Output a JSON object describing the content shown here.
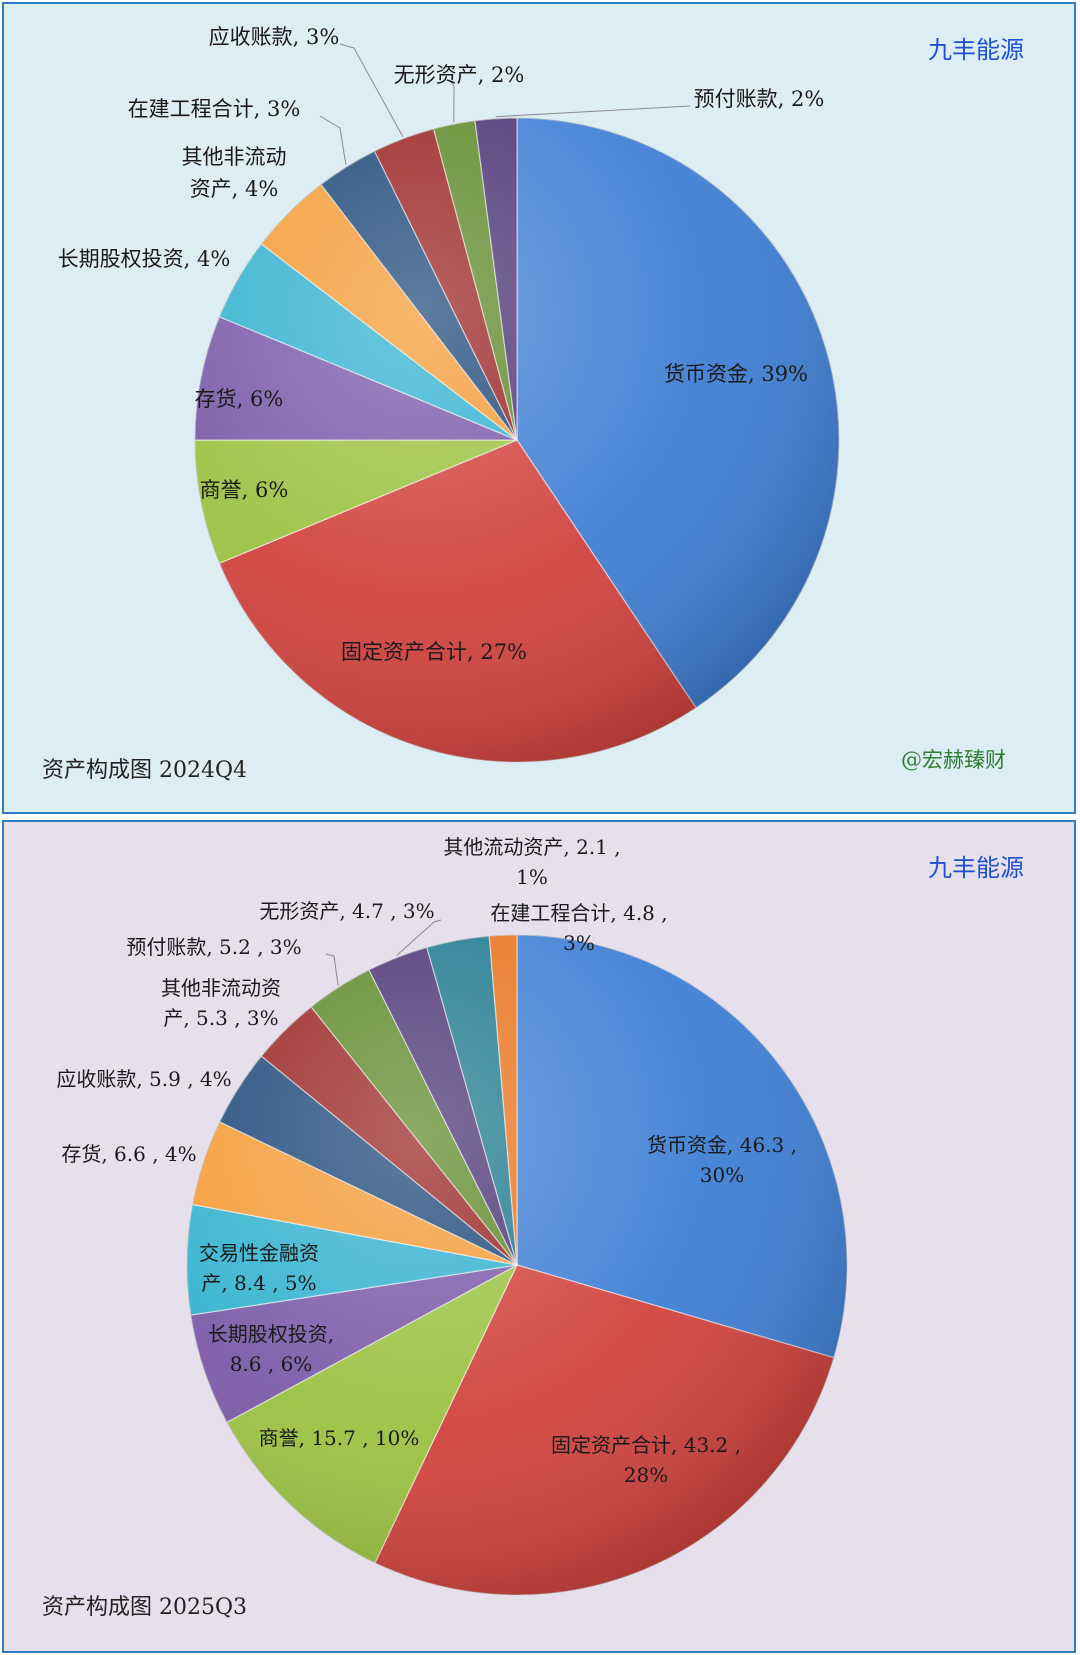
{
  "charts": [
    {
      "company": "九丰能源",
      "caption": "资产构成图 2024Q4",
      "watermark": "@宏赫臻财"
    },
    {
      "company": "九丰能源",
      "caption": "资产构成图 2025Q3"
    }
  ],
  "chart_data": [
    {
      "type": "pie",
      "title": "资产构成图 2024Q4",
      "slices": [
        {
          "label": "货币资金",
          "percent": 39,
          "color": "#3f7fd4",
          "text": [
            "货币资金, 39%"
          ]
        },
        {
          "label": "固定资产合计",
          "percent": 27,
          "color": "#d1433e",
          "text": [
            "固定资产合计, 27%"
          ]
        },
        {
          "label": "商誉",
          "percent": 6,
          "color": "#9bc242",
          "text": [
            "商誉, 6%"
          ]
        },
        {
          "label": "存货",
          "percent": 6,
          "color": "#7b5aa8",
          "text": [
            "存货, 6%"
          ]
        },
        {
          "label": "长期股权投资",
          "percent": 4,
          "color": "#33b2cf",
          "text": [
            "长期股权投资, 4%"
          ]
        },
        {
          "label": "其他非流动资产",
          "percent": 4,
          "color": "#f59b35",
          "text": [
            "其他非流动",
            "资产, 4%"
          ]
        },
        {
          "label": "在建工程合计",
          "percent": 3,
          "color": "#1f4a7a",
          "text": [
            "在建工程合计, 3%"
          ]
        },
        {
          "label": "应收账款",
          "percent": 3,
          "color": "#9a2525",
          "text": [
            "应收账款, 3%"
          ]
        },
        {
          "label": "无形资产",
          "percent": 2,
          "color": "#5e8a2a",
          "text": [
            "无形资产, 2%"
          ]
        },
        {
          "label": "预付账款",
          "percent": 2,
          "color": "#4d3575",
          "text": [
            "预付账款, 2%"
          ]
        }
      ]
    },
    {
      "type": "pie",
      "title": "资产构成图 2025Q3",
      "slices": [
        {
          "label": "货币资金",
          "value": 46.3,
          "percent": 30,
          "color": "#3f7fd4",
          "text": [
            "货币资金, 46.3 ,",
            "30%"
          ]
        },
        {
          "label": "固定资产合计",
          "value": 43.2,
          "percent": 28,
          "color": "#d1433e",
          "text": [
            "固定资产合计, 43.2 ,",
            "28%"
          ]
        },
        {
          "label": "商誉",
          "value": 15.7,
          "percent": 10,
          "color": "#9bc242",
          "text": [
            "商誉, 15.7 , 10%"
          ]
        },
        {
          "label": "长期股权投资",
          "value": 8.6,
          "percent": 6,
          "color": "#7b5aa8",
          "text": [
            "长期股权投资,",
            "8.6 , 6%"
          ]
        },
        {
          "label": "交易性金融资产",
          "value": 8.4,
          "percent": 5,
          "color": "#33b2cf",
          "text": [
            "交易性金融资",
            "产, 8.4 , 5%"
          ]
        },
        {
          "label": "存货",
          "value": 6.6,
          "percent": 4,
          "color": "#f59b35",
          "text": [
            "存货, 6.6 , 4%"
          ]
        },
        {
          "label": "应收账款",
          "value": 5.9,
          "percent": 4,
          "color": "#1f4a7a",
          "text": [
            "应收账款, 5.9 , 4%"
          ]
        },
        {
          "label": "其他非流动资产",
          "value": 5.3,
          "percent": 3,
          "color": "#9a2525",
          "text": [
            "其他非流动资",
            "产, 5.3 , 3%"
          ]
        },
        {
          "label": "预付账款",
          "value": 5.2,
          "percent": 3,
          "color": "#5e8a2a",
          "text": [
            "预付账款, 5.2 , 3%"
          ]
        },
        {
          "label": "无形资产",
          "value": 4.7,
          "percent": 3,
          "color": "#4d3575",
          "text": [
            "无形资产, 4.7 , 3%"
          ]
        },
        {
          "label": "在建工程合计",
          "value": 4.8,
          "percent": 3,
          "color": "#1f7a90",
          "text": [
            "在建工程合计, 4.8 ,",
            "3%"
          ]
        },
        {
          "label": "其他流动资产",
          "value": 2.1,
          "percent": 1,
          "color": "#e8731d",
          "text": [
            "其他流动资产, 2.1 ,",
            "1%"
          ]
        }
      ]
    }
  ]
}
